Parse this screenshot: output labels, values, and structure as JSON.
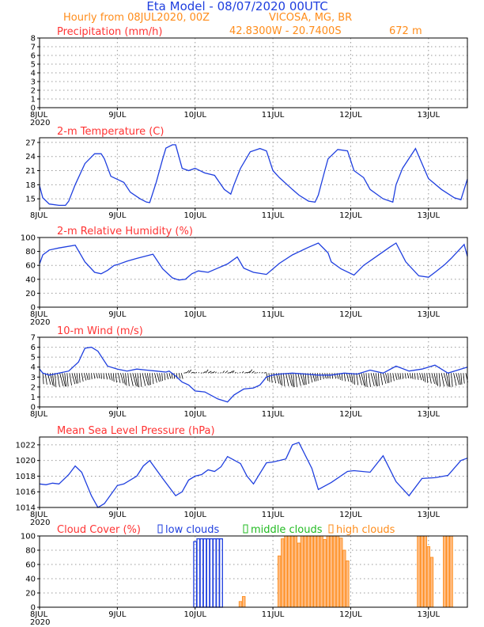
{
  "header": {
    "title": "Eta Model - 08/07/2020 00UTC",
    "subtitle_left": "Hourly from 08JUL2020, 00Z",
    "location": "VICOSA, MG, BR",
    "coords": "42.8300W - 20.7400S",
    "elevation": "672  m"
  },
  "colors": {
    "line": "#1f3fdf",
    "title": "#ff3333",
    "header": "#1f3fdf",
    "subheader": "#ff8c1a",
    "low": "#1f3fdf",
    "middle": "#22bb22",
    "high": "#ff8c1a"
  },
  "chart_data": [
    {
      "type": "line",
      "title": "Precipitation (mm/h)",
      "xlabel": "",
      "ylabel": "",
      "x_ticks": [
        "8JUL",
        "9JUL",
        "10JUL",
        "11JUL",
        "12JUL",
        "13JUL"
      ],
      "x_year": "2020",
      "xlim_hours": [
        0,
        132
      ],
      "ylim": [
        0,
        8
      ],
      "y_ticks": [
        0,
        1,
        2,
        3,
        4,
        5,
        6,
        7,
        8
      ],
      "series": [
        {
          "name": "precip",
          "x": [],
          "y": []
        }
      ]
    },
    {
      "type": "line",
      "title": "2-m Temperature (C)",
      "x_ticks": [
        "8JUL",
        "9JUL",
        "10JUL",
        "11JUL",
        "12JUL",
        "13JUL"
      ],
      "x_year": "",
      "xlim_hours": [
        0,
        132
      ],
      "ylim": [
        13,
        28
      ],
      "y_ticks": [
        15,
        18,
        21,
        24,
        27
      ],
      "series": [
        {
          "name": "temperature",
          "x": [
            0,
            1,
            3,
            6,
            8,
            9,
            11,
            14,
            17,
            19,
            20,
            22,
            26,
            28,
            31,
            33,
            34,
            36,
            38,
            39,
            41,
            42,
            44,
            46,
            48,
            51,
            54,
            57,
            59,
            60,
            62,
            65,
            68,
            70,
            72,
            74,
            78,
            80,
            83,
            85,
            86,
            88,
            89,
            92,
            95,
            97,
            100,
            102,
            106,
            109,
            110,
            112,
            116,
            120,
            124,
            128,
            130,
            132
          ],
          "y": [
            17.8,
            15.2,
            13.9,
            13.6,
            13.6,
            14.5,
            18,
            22.5,
            24.6,
            24.6,
            23.5,
            19.8,
            18.5,
            16.4,
            15.0,
            14.3,
            14.2,
            18.5,
            23.5,
            25.8,
            26.5,
            26.5,
            21.5,
            21.0,
            21.5,
            20.5,
            20.0,
            17.0,
            16.0,
            18.0,
            21.5,
            25.0,
            25.7,
            25.2,
            21.0,
            19.5,
            17.0,
            15.8,
            14.5,
            14.3,
            15.8,
            21.0,
            23.5,
            25.5,
            25.2,
            21.0,
            19.5,
            17.0,
            15.0,
            14.3,
            18.0,
            21.5,
            25.7,
            19.3,
            17.0,
            15.2,
            14.8,
            19.2
          ]
        }
      ]
    },
    {
      "type": "line",
      "title": "2-m Relative Humidity (%)",
      "x_ticks": [
        "8JUL",
        "9JUL",
        "10JUL",
        "11JUL",
        "12JUL",
        "13JUL"
      ],
      "x_year": "2020",
      "xlim_hours": [
        0,
        132
      ],
      "ylim": [
        0,
        100
      ],
      "y_ticks": [
        0,
        20,
        40,
        60,
        80,
        100
      ],
      "series": [
        {
          "name": "relative humidity",
          "x": [
            0,
            1,
            3,
            6,
            11,
            14,
            17,
            19,
            21,
            23,
            24,
            27,
            30,
            35,
            38,
            41,
            43,
            45,
            47,
            49,
            52,
            55,
            58,
            61,
            63,
            66,
            70,
            74,
            78,
            83,
            86,
            89,
            90,
            93,
            97,
            100,
            104,
            108,
            110,
            113,
            117,
            120,
            122,
            125,
            127,
            131,
            132
          ],
          "y": [
            62,
            75,
            82,
            85,
            89,
            65,
            50,
            48,
            53,
            60,
            61,
            66,
            70,
            76,
            55,
            42,
            39,
            40,
            48,
            52,
            50,
            56,
            62,
            72,
            56,
            50,
            47,
            63,
            75,
            86,
            92,
            78,
            65,
            55,
            46,
            60,
            73,
            86,
            92,
            65,
            45,
            43,
            50,
            61,
            70,
            90,
            73
          ]
        }
      ]
    },
    {
      "type": "line",
      "title": "10-m Wind (m/s)",
      "x_ticks": [
        "8JUL",
        "9JUL",
        "10JUL",
        "11JUL",
        "12JUL",
        "13JUL"
      ],
      "x_year": "",
      "xlim_hours": [
        0,
        132
      ],
      "ylim": [
        0,
        7
      ],
      "y_ticks": [
        0,
        1,
        2,
        3,
        4,
        5,
        6,
        7
      ],
      "wind_vectors": "arrows along y=3.4 showing direction (mostly southerly/southwesterly)",
      "series": [
        {
          "name": "wind speed",
          "x": [
            0,
            1,
            3,
            6,
            9,
            12,
            14,
            16,
            18,
            21,
            24,
            27,
            30,
            33,
            36,
            39,
            40,
            42,
            44,
            46,
            48,
            51,
            55,
            58,
            60,
            63,
            66,
            68,
            70,
            72,
            74,
            78,
            82,
            86,
            90,
            94,
            98,
            102,
            106,
            110,
            114,
            118,
            122,
            126,
            130,
            132
          ],
          "y": [
            3.8,
            3.4,
            3.2,
            3.4,
            3.6,
            4.5,
            5.9,
            6.0,
            5.6,
            4.1,
            3.8,
            3.6,
            3.8,
            3.7,
            3.6,
            3.5,
            3.6,
            3.1,
            2.5,
            2.2,
            1.6,
            1.5,
            0.8,
            0.5,
            1.2,
            1.8,
            1.9,
            2.2,
            3.0,
            3.2,
            3.3,
            3.4,
            3.3,
            3.2,
            3.2,
            3.4,
            3.3,
            3.7,
            3.4,
            4.1,
            3.6,
            3.8,
            4.2,
            3.4,
            3.8,
            4.0
          ]
        }
      ]
    },
    {
      "type": "line",
      "title": "Mean Sea Level Pressure (hPa)",
      "x_ticks": [
        "8JUL",
        "9JUL",
        "10JUL",
        "11JUL",
        "12JUL",
        "13JUL"
      ],
      "x_year": "2020",
      "xlim_hours": [
        0,
        132
      ],
      "ylim": [
        1014,
        1023
      ],
      "y_ticks": [
        1014,
        1016,
        1018,
        1020,
        1022
      ],
      "series": [
        {
          "name": "mslp",
          "x": [
            0,
            2,
            4,
            6,
            9,
            11,
            13,
            16,
            18,
            20,
            24,
            26,
            30,
            32,
            34,
            38,
            42,
            44,
            46,
            48,
            50,
            52,
            54,
            56,
            58,
            62,
            64,
            66,
            70,
            72,
            76,
            78,
            80,
            84,
            86,
            90,
            95,
            97,
            102,
            106,
            110,
            114,
            118,
            122,
            126,
            130,
            132
          ],
          "y": [
            1017.0,
            1016.9,
            1017.1,
            1017.0,
            1018.2,
            1019.3,
            1018.5,
            1015.5,
            1013.8,
            1014.5,
            1016.8,
            1017.0,
            1018.0,
            1019.3,
            1020.0,
            1017.7,
            1015.5,
            1016.0,
            1017.5,
            1018.0,
            1018.2,
            1018.8,
            1018.6,
            1019.2,
            1020.5,
            1019.6,
            1018.0,
            1017.0,
            1019.7,
            1019.8,
            1020.2,
            1022.0,
            1022.3,
            1019.0,
            1016.3,
            1017.2,
            1018.6,
            1018.7,
            1018.5,
            1020.6,
            1017.3,
            1015.5,
            1017.7,
            1017.8,
            1018.1,
            1020.0,
            1020.3
          ]
        }
      ]
    },
    {
      "type": "bar",
      "title": "Cloud Cover (%)",
      "legend": [
        "low clouds",
        "middle clouds",
        "high clouds"
      ],
      "x_ticks": [
        "8JUL",
        "9JUL",
        "10JUL",
        "11JUL",
        "12JUL",
        "13JUL"
      ],
      "x_year": "2020",
      "xlim_hours": [
        0,
        132
      ],
      "ylim": [
        0,
        100
      ],
      "y_ticks": [
        0,
        20,
        40,
        60,
        80,
        100
      ],
      "series": [
        {
          "name": "low clouds",
          "x": [
            48,
            49,
            50,
            51,
            52,
            53,
            54,
            55,
            56
          ],
          "values": [
            92,
            96,
            96,
            96,
            96,
            96,
            96,
            96,
            96
          ]
        },
        {
          "name": "middle clouds",
          "x": [],
          "values": []
        },
        {
          "name": "high clouds",
          "x": [
            62,
            63,
            74,
            75,
            76,
            77,
            78,
            79,
            80,
            81,
            82,
            83,
            84,
            85,
            86,
            87,
            88,
            89,
            90,
            91,
            92,
            93,
            94,
            95,
            117,
            118,
            119,
            120,
            121,
            122,
            123,
            124,
            125,
            126,
            127
          ],
          "values": [
            8,
            15,
            72,
            96,
            100,
            100,
            100,
            100,
            90,
            100,
            100,
            100,
            100,
            100,
            100,
            100,
            95,
            100,
            100,
            100,
            100,
            97,
            80,
            65,
            100,
            100,
            100,
            85,
            70,
            0,
            0,
            0,
            100,
            100,
            100
          ]
        }
      ]
    }
  ]
}
